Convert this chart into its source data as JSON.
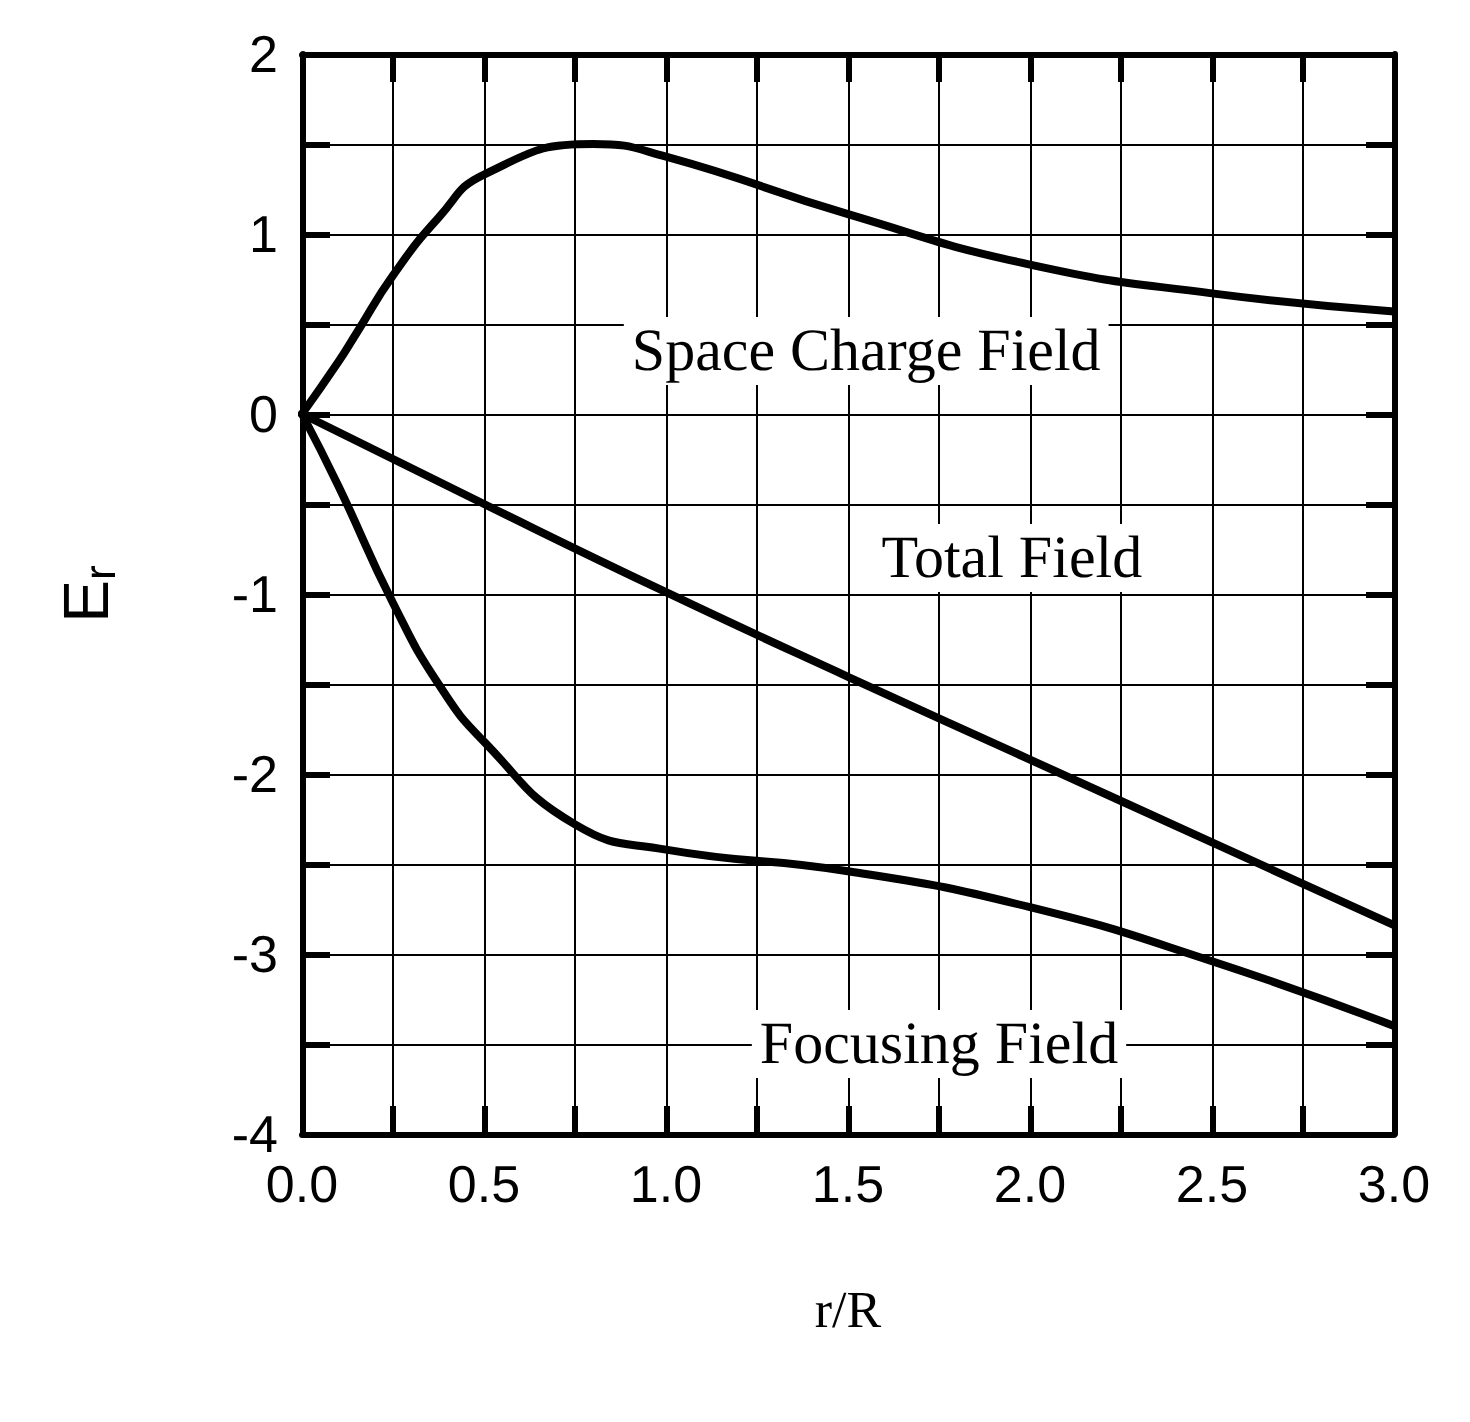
{
  "chart_data": {
    "type": "line",
    "xlabel": "r/R",
    "ylabel": "E$_{r}$",
    "xlim": [
      0,
      3
    ],
    "ylim": [
      -4,
      2
    ],
    "xticks": [
      {
        "value": 0,
        "label": "0.0"
      },
      {
        "value": 0.25,
        "label": null
      },
      {
        "value": 0.5,
        "label": "0.5"
      },
      {
        "value": 0.75,
        "label": null
      },
      {
        "value": 1,
        "label": "1.0"
      },
      {
        "value": 1.25,
        "label": null
      },
      {
        "value": 1.5,
        "label": "1.5"
      },
      {
        "value": 1.75,
        "label": null
      },
      {
        "value": 2,
        "label": "2.0"
      },
      {
        "value": 2.25,
        "label": null
      },
      {
        "value": 2.5,
        "label": "2.5"
      },
      {
        "value": 2.75,
        "label": null
      },
      {
        "value": 3,
        "label": "3.0"
      }
    ],
    "yticks": [
      -4,
      {
        "value": -3.5,
        "label": null
      },
      -3,
      {
        "value": -2.5,
        "label": null
      },
      -2,
      {
        "value": -1.5,
        "label": null
      },
      -1,
      {
        "value": -0.5,
        "label": null
      },
      0,
      {
        "value": 0.5,
        "label": null
      },
      1,
      {
        "value": 1.5,
        "label": null
      },
      2
    ],
    "grid": true,
    "legend": false,
    "marker": "none",
    "line_style": "solid",
    "series": [
      {
        "name": "Space Charge Field",
        "color": "#000000",
        "x": [
          0,
          0.1,
          0.15,
          0.25,
          0.375,
          0.5,
          0.8,
          1.0,
          1.5,
          2.0,
          2.5,
          3.0
        ],
        "values": [
          0,
          0.29,
          0.45,
          0.77,
          1.09,
          1.33,
          1.5,
          1.43,
          1.11,
          0.83,
          0.67,
          0.57
        ]
      },
      {
        "name": "Total Field",
        "color": "#000000",
        "x": [
          0,
          0.5,
          1.0,
          1.5,
          2.0,
          2.5,
          3.0
        ],
        "values": [
          0,
          -0.5,
          -0.99,
          -1.46,
          -1.92,
          -2.38,
          -2.84
        ]
      },
      {
        "name": "Focusing Field",
        "color": "#000000",
        "x": [
          0,
          0.1,
          0.25,
          0.375,
          0.5,
          0.75,
          1.0,
          1.5,
          2.0,
          2.5,
          3.0
        ],
        "values": [
          0,
          -0.4,
          -1.05,
          -1.5,
          -1.82,
          -2.28,
          -2.42,
          -2.54,
          -2.74,
          -3.04,
          -3.4
        ]
      }
    ]
  }
}
